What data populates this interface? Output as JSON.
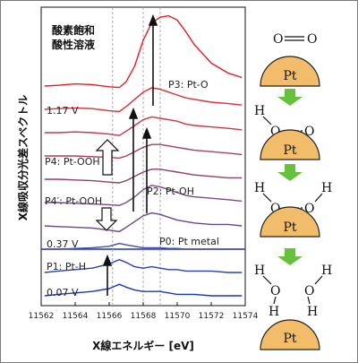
{
  "chart_data": {
    "type": "line",
    "title": "",
    "condition_label": [
      "酸素飽和",
      "酸性溶液"
    ],
    "xlabel": "X線エネルギー [eV]",
    "ylabel": "X線吸収分光差スペクトル",
    "xlim": [
      11562,
      11574
    ],
    "xticks": [
      11562,
      11564,
      11566,
      11568,
      11570,
      11572,
      11574
    ],
    "reference_lines_ev": [
      11566.2,
      11568.0,
      11569.0
    ],
    "voltage_labels": [
      "1.17 V",
      "0.37 V",
      "0.07 V"
    ],
    "peak_labels": [
      "P3: Pt-O",
      "P4: Pt-OOH",
      "P4′: Pt-OOH",
      "P2: Pt-OH",
      "P0: Pt metal",
      "P1: Pt-H"
    ],
    "series": [
      {
        "color": "#e21f26",
        "offset": 9.0,
        "x": [
          11562.2,
          11563,
          11564,
          11565,
          11566,
          11566.6,
          11567,
          11567.5,
          11568,
          11568.5,
          11569,
          11569.5,
          11570,
          11570.5,
          11571,
          11572,
          11573,
          11573.8
        ],
        "y": [
          0.0,
          0.05,
          0.15,
          0.1,
          -0.05,
          -0.1,
          0.3,
          1.4,
          3.2,
          4.4,
          4.8,
          4.9,
          4.6,
          3.8,
          2.9,
          1.6,
          0.9,
          0.6
        ]
      },
      {
        "color": "#d8303a",
        "offset": 8.0,
        "x": [
          11562.2,
          11563,
          11564,
          11565,
          11566,
          11566.6,
          11567,
          11567.5,
          11568,
          11568.5,
          11569,
          11569.5,
          11570,
          11570.5,
          11571,
          11572,
          11573,
          11573.8
        ],
        "y": [
          0.0,
          0.05,
          0.1,
          0.05,
          -0.1,
          -0.15,
          0.2,
          0.7,
          1.2,
          1.5,
          1.4,
          1.2,
          1.0,
          0.8,
          0.7,
          0.5,
          0.4,
          0.3
        ]
      },
      {
        "color": "#c23a48",
        "offset": 7.0,
        "x": [
          11562.2,
          11563,
          11564,
          11565,
          11566,
          11566.6,
          11567,
          11567.5,
          11568,
          11568.5,
          11569,
          11569.5,
          11570,
          11570.5,
          11571,
          11572,
          11573,
          11573.8
        ],
        "y": [
          0.0,
          0.0,
          0.05,
          0.0,
          -0.1,
          -0.2,
          0.1,
          0.5,
          0.9,
          1.1,
          1.0,
          0.9,
          0.8,
          0.6,
          0.5,
          0.4,
          0.3,
          0.2
        ]
      },
      {
        "color": "#a8405a",
        "offset": 6.0,
        "x": [
          11562.2,
          11563,
          11564,
          11565,
          11566,
          11566.6,
          11567,
          11567.5,
          11568,
          11568.5,
          11569,
          11569.5,
          11570,
          11570.5,
          11571,
          11572,
          11573,
          11573.8
        ],
        "y": [
          0.0,
          0.0,
          0.0,
          -0.05,
          -0.1,
          -0.15,
          0.0,
          0.3,
          0.6,
          0.8,
          0.8,
          0.7,
          0.6,
          0.5,
          0.4,
          0.3,
          0.2,
          0.1
        ]
      },
      {
        "color": "#8f3f66",
        "offset": 5.0,
        "x": [
          11562.2,
          11563,
          11564,
          11565,
          11566,
          11566.6,
          11567,
          11567.5,
          11568,
          11568.5,
          11569,
          11569.5,
          11570,
          11570.5,
          11571,
          11572,
          11573,
          11573.8
        ],
        "y": [
          0.0,
          0.0,
          -0.05,
          -0.1,
          -0.2,
          -0.25,
          -0.1,
          0.2,
          0.5,
          0.7,
          0.7,
          0.6,
          0.5,
          0.4,
          0.3,
          0.2,
          0.1,
          0.1
        ]
      },
      {
        "color": "#7a4a82",
        "offset": 4.0,
        "x": [
          11562.2,
          11563,
          11564,
          11565,
          11566,
          11566.6,
          11567,
          11567.5,
          11568,
          11568.5,
          11569,
          11569.5,
          11570,
          11570.5,
          11571,
          11572,
          11573,
          11573.8
        ],
        "y": [
          0.0,
          0.0,
          -0.05,
          -0.1,
          -0.15,
          -0.2,
          0.0,
          0.4,
          0.9,
          1.2,
          1.1,
          0.9,
          0.7,
          0.5,
          0.4,
          0.3,
          0.2,
          0.1
        ]
      },
      {
        "color": "#65498f",
        "offset": 3.0,
        "x": [
          11562.2,
          11563,
          11564,
          11565,
          11566,
          11566.6,
          11567,
          11567.5,
          11568,
          11568.5,
          11569,
          11569.5,
          11570,
          11570.5,
          11571,
          11572,
          11573,
          11573.8
        ],
        "y": [
          0.0,
          -0.05,
          -0.1,
          -0.15,
          -0.3,
          -0.4,
          -0.1,
          0.3,
          0.7,
          0.9,
          0.8,
          0.6,
          0.4,
          0.3,
          0.2,
          0.1,
          0.1,
          0.0
        ]
      },
      {
        "color": "#4f4aa3",
        "offset": 2.0,
        "x": [
          11562.2,
          11563,
          11564,
          11565,
          11566,
          11566.6,
          11567,
          11567.5,
          11568,
          11568.5,
          11569,
          11569.5,
          11570,
          11570.5,
          11571,
          11572,
          11573,
          11573.8
        ],
        "y": [
          0.0,
          0.0,
          0.05,
          0.1,
          0.2,
          0.4,
          0.3,
          0.2,
          0.1,
          0.1,
          0.1,
          0.05,
          0.05,
          0.0,
          0.0,
          0.0,
          0.0,
          0.0
        ]
      },
      {
        "color": "#2b3fb6",
        "offset": 1.0,
        "x": [
          11562.2,
          11563,
          11564,
          11565,
          11566,
          11566.6,
          11567,
          11567.5,
          11568,
          11568.5,
          11569,
          11569.5,
          11570,
          11570.5,
          11571,
          11572,
          11573,
          11573.8
        ],
        "y": [
          0.0,
          0.1,
          0.2,
          0.3,
          0.6,
          0.9,
          0.7,
          0.4,
          0.3,
          0.4,
          0.3,
          0.2,
          0.2,
          0.1,
          0.1,
          0.1,
          0.0,
          0.0
        ]
      },
      {
        "color": "#1b34c2",
        "offset": 0.0,
        "x": [
          11562.2,
          11563,
          11564,
          11565,
          11566,
          11566.6,
          11567,
          11567.5,
          11568,
          11568.5,
          11569,
          11569.5,
          11570,
          11570.5,
          11571,
          11572,
          11573,
          11573.8
        ],
        "y": [
          0.0,
          0.1,
          0.2,
          0.3,
          0.5,
          0.8,
          0.6,
          0.4,
          0.3,
          0.3,
          0.3,
          0.2,
          0.1,
          0.1,
          0.1,
          0.0,
          0.0,
          0.0
        ]
      }
    ]
  },
  "mechanism": {
    "steps": [
      {
        "molecule": "O2",
        "atoms": [
          "O",
          "O"
        ],
        "surface": "Pt"
      },
      {
        "molecule": "OOH",
        "atoms": [
          "H",
          "O",
          "O"
        ],
        "surface": "Pt"
      },
      {
        "molecule": "2OH",
        "atoms": [
          "H",
          "O",
          "O",
          "H"
        ],
        "surface": "Pt"
      },
      {
        "molecule": "2H2O",
        "atoms": [
          "H",
          "O",
          "H",
          "H",
          "O",
          "H"
        ],
        "surface": "Pt"
      }
    ],
    "colors": {
      "pt": "#f2bd6a",
      "pt_stroke": "#222222",
      "arrow": "#66c23c"
    }
  }
}
